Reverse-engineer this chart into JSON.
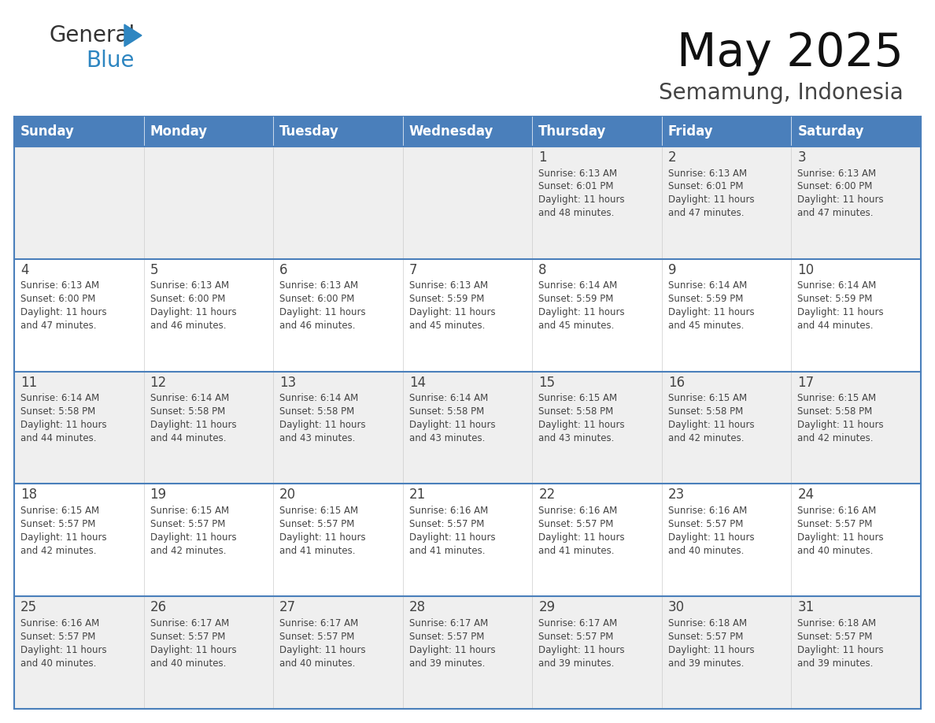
{
  "title": "May 2025",
  "subtitle": "Semamung, Indonesia",
  "header_bg": "#4a7fbb",
  "header_text_color": "#FFFFFF",
  "days_of_week": [
    "Sunday",
    "Monday",
    "Tuesday",
    "Wednesday",
    "Thursday",
    "Friday",
    "Saturday"
  ],
  "row_bg_odd": "#efefef",
  "row_bg_even": "#FFFFFF",
  "text_color": "#444444",
  "border_color": "#4a7fbb",
  "cell_border_color": "#4a7fbb",
  "calendar_data": [
    [
      {
        "day": "",
        "sunrise": "",
        "sunset": "",
        "daylight": ""
      },
      {
        "day": "",
        "sunrise": "",
        "sunset": "",
        "daylight": ""
      },
      {
        "day": "",
        "sunrise": "",
        "sunset": "",
        "daylight": ""
      },
      {
        "day": "",
        "sunrise": "",
        "sunset": "",
        "daylight": ""
      },
      {
        "day": "1",
        "sunrise": "6:13 AM",
        "sunset": "6:01 PM",
        "daylight": "11 hours and 48 minutes."
      },
      {
        "day": "2",
        "sunrise": "6:13 AM",
        "sunset": "6:01 PM",
        "daylight": "11 hours and 47 minutes."
      },
      {
        "day": "3",
        "sunrise": "6:13 AM",
        "sunset": "6:00 PM",
        "daylight": "11 hours and 47 minutes."
      }
    ],
    [
      {
        "day": "4",
        "sunrise": "6:13 AM",
        "sunset": "6:00 PM",
        "daylight": "11 hours and 47 minutes."
      },
      {
        "day": "5",
        "sunrise": "6:13 AM",
        "sunset": "6:00 PM",
        "daylight": "11 hours and 46 minutes."
      },
      {
        "day": "6",
        "sunrise": "6:13 AM",
        "sunset": "6:00 PM",
        "daylight": "11 hours and 46 minutes."
      },
      {
        "day": "7",
        "sunrise": "6:13 AM",
        "sunset": "5:59 PM",
        "daylight": "11 hours and 45 minutes."
      },
      {
        "day": "8",
        "sunrise": "6:14 AM",
        "sunset": "5:59 PM",
        "daylight": "11 hours and 45 minutes."
      },
      {
        "day": "9",
        "sunrise": "6:14 AM",
        "sunset": "5:59 PM",
        "daylight": "11 hours and 45 minutes."
      },
      {
        "day": "10",
        "sunrise": "6:14 AM",
        "sunset": "5:59 PM",
        "daylight": "11 hours and 44 minutes."
      }
    ],
    [
      {
        "day": "11",
        "sunrise": "6:14 AM",
        "sunset": "5:58 PM",
        "daylight": "11 hours and 44 minutes."
      },
      {
        "day": "12",
        "sunrise": "6:14 AM",
        "sunset": "5:58 PM",
        "daylight": "11 hours and 44 minutes."
      },
      {
        "day": "13",
        "sunrise": "6:14 AM",
        "sunset": "5:58 PM",
        "daylight": "11 hours and 43 minutes."
      },
      {
        "day": "14",
        "sunrise": "6:14 AM",
        "sunset": "5:58 PM",
        "daylight": "11 hours and 43 minutes."
      },
      {
        "day": "15",
        "sunrise": "6:15 AM",
        "sunset": "5:58 PM",
        "daylight": "11 hours and 43 minutes."
      },
      {
        "day": "16",
        "sunrise": "6:15 AM",
        "sunset": "5:58 PM",
        "daylight": "11 hours and 42 minutes."
      },
      {
        "day": "17",
        "sunrise": "6:15 AM",
        "sunset": "5:58 PM",
        "daylight": "11 hours and 42 minutes."
      }
    ],
    [
      {
        "day": "18",
        "sunrise": "6:15 AM",
        "sunset": "5:57 PM",
        "daylight": "11 hours and 42 minutes."
      },
      {
        "day": "19",
        "sunrise": "6:15 AM",
        "sunset": "5:57 PM",
        "daylight": "11 hours and 42 minutes."
      },
      {
        "day": "20",
        "sunrise": "6:15 AM",
        "sunset": "5:57 PM",
        "daylight": "11 hours and 41 minutes."
      },
      {
        "day": "21",
        "sunrise": "6:16 AM",
        "sunset": "5:57 PM",
        "daylight": "11 hours and 41 minutes."
      },
      {
        "day": "22",
        "sunrise": "6:16 AM",
        "sunset": "5:57 PM",
        "daylight": "11 hours and 41 minutes."
      },
      {
        "day": "23",
        "sunrise": "6:16 AM",
        "sunset": "5:57 PM",
        "daylight": "11 hours and 40 minutes."
      },
      {
        "day": "24",
        "sunrise": "6:16 AM",
        "sunset": "5:57 PM",
        "daylight": "11 hours and 40 minutes."
      }
    ],
    [
      {
        "day": "25",
        "sunrise": "6:16 AM",
        "sunset": "5:57 PM",
        "daylight": "11 hours and 40 minutes."
      },
      {
        "day": "26",
        "sunrise": "6:17 AM",
        "sunset": "5:57 PM",
        "daylight": "11 hours and 40 minutes."
      },
      {
        "day": "27",
        "sunrise": "6:17 AM",
        "sunset": "5:57 PM",
        "daylight": "11 hours and 40 minutes."
      },
      {
        "day": "28",
        "sunrise": "6:17 AM",
        "sunset": "5:57 PM",
        "daylight": "11 hours and 39 minutes."
      },
      {
        "day": "29",
        "sunrise": "6:17 AM",
        "sunset": "5:57 PM",
        "daylight": "11 hours and 39 minutes."
      },
      {
        "day": "30",
        "sunrise": "6:18 AM",
        "sunset": "5:57 PM",
        "daylight": "11 hours and 39 minutes."
      },
      {
        "day": "31",
        "sunrise": "6:18 AM",
        "sunset": "5:57 PM",
        "daylight": "11 hours and 39 minutes."
      }
    ]
  ]
}
